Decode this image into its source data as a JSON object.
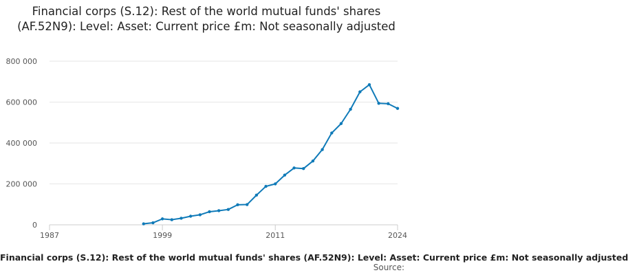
{
  "chart_data": {
    "type": "line",
    "title": "Financial corps (S.12): Rest of the world mutual funds' shares (AF.52N9): Level: Asset: Current price £m: Not seasonally adjusted",
    "xlabel": "",
    "ylabel": "",
    "xlim": [
      1987,
      2024
    ],
    "ylim": [
      0,
      800000
    ],
    "x_ticks": [
      1987,
      1999,
      2011,
      2024
    ],
    "x_tick_labels": [
      "1987",
      "1999",
      "2011",
      "2024"
    ],
    "y_ticks": [
      0,
      200000,
      400000,
      600000,
      800000
    ],
    "y_tick_labels": [
      "0",
      "200 000",
      "400 000",
      "600 000",
      "800 000"
    ],
    "grid": true,
    "series": [
      {
        "name": "Financial corps (S.12): Rest of the world mutual funds' shares (AF.52N9): Level: Asset: Current price £m: Not seasonally adjusted",
        "color": "#0f7ab8",
        "x": [
          1997,
          1998,
          1999,
          2000,
          2001,
          2002,
          2003,
          2004,
          2005,
          2006,
          2007,
          2008,
          2009,
          2010,
          2011,
          2012,
          2013,
          2014,
          2015,
          2016,
          2017,
          2018,
          2019,
          2020,
          2021,
          2022,
          2023,
          2024
        ],
        "values": [
          5000,
          10000,
          29000,
          25000,
          32000,
          42000,
          49000,
          64000,
          69000,
          75000,
          98000,
          99000,
          145000,
          188000,
          200000,
          243000,
          278000,
          275000,
          312000,
          368000,
          449000,
          495000,
          565000,
          650000,
          685000,
          594000,
          592000,
          569000
        ]
      }
    ],
    "legend_position": "bottom",
    "source_label": "Source:"
  }
}
